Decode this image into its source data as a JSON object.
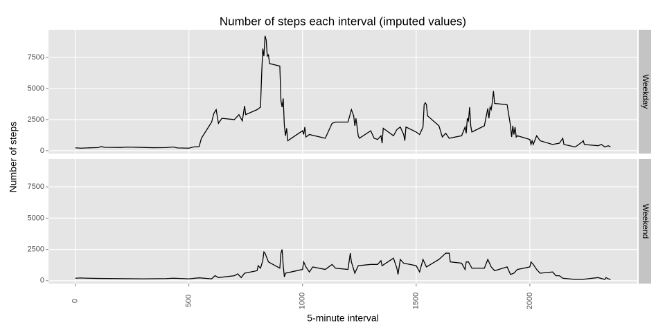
{
  "chart_data": {
    "type": "line",
    "title": "Number of steps each interval (imputed values)",
    "x_label": "5-minute interval",
    "y_label": "Number of steps",
    "color": "#000000",
    "grid": true,
    "xlim": [
      -117.75,
      2472.75
    ],
    "xticks": [
      0,
      500,
      1000,
      1500,
      2000
    ],
    "ylim": [
      -230,
      9720
    ],
    "yticks": [
      0,
      2500,
      5000,
      7500
    ],
    "panels": [
      {
        "label": "Weekday",
        "x": [
          0,
          25,
          50,
          100,
          115,
          130,
          200,
          230,
          300,
          345,
          400,
          430,
          450,
          500,
          520,
          545,
          555,
          600,
          610,
          620,
          630,
          645,
          700,
          720,
          735,
          745,
          750,
          800,
          815,
          820,
          825,
          830,
          835,
          840,
          845,
          850,
          855,
          900,
          905,
          910,
          915,
          920,
          925,
          930,
          935,
          1000,
          1005,
          1010,
          1015,
          1030,
          1100,
          1130,
          1145,
          1200,
          1215,
          1225,
          1230,
          1235,
          1245,
          1250,
          1300,
          1315,
          1330,
          1345,
          1350,
          1355,
          1400,
          1415,
          1430,
          1445,
          1450,
          1455,
          1500,
          1515,
          1530,
          1535,
          1540,
          1545,
          1550,
          1600,
          1615,
          1630,
          1645,
          1700,
          1715,
          1720,
          1725,
          1730,
          1735,
          1740,
          1745,
          1800,
          1815,
          1820,
          1825,
          1830,
          1835,
          1840,
          1845,
          1900,
          1915,
          1920,
          1925,
          1930,
          1935,
          1940,
          1945,
          2000,
          2005,
          2010,
          2015,
          2030,
          2045,
          2100,
          2130,
          2145,
          2150,
          2200,
          2215,
          2230,
          2235,
          2240,
          2300,
          2315,
          2330,
          2345,
          2355
        ],
        "values": [
          230,
          200,
          220,
          250,
          330,
          270,
          260,
          290,
          260,
          240,
          250,
          300,
          220,
          200,
          300,
          330,
          1000,
          2300,
          3000,
          3300,
          2200,
          2600,
          2500,
          2900,
          2400,
          3600,
          2900,
          3300,
          3500,
          6100,
          8200,
          7600,
          9232,
          8900,
          7600,
          7700,
          7000,
          6800,
          4000,
          3500,
          4200,
          2000,
          1200,
          1800,
          800,
          1600,
          1300,
          1900,
          1100,
          1300,
          1000,
          2200,
          2300,
          2300,
          3300,
          2800,
          2000,
          2600,
          1200,
          1000,
          1600,
          1000,
          900,
          1200,
          600,
          1800,
          1200,
          1700,
          1900,
          1300,
          800,
          1900,
          1500,
          1300,
          1900,
          3700,
          3850,
          3700,
          2800,
          2000,
          1100,
          1400,
          1000,
          1200,
          1900,
          1400,
          2600,
          2400,
          3500,
          2000,
          1500,
          2000,
          3400,
          2600,
          3500,
          3300,
          3900,
          4800,
          3800,
          3700,
          2000,
          1100,
          2000,
          1300,
          1900,
          1100,
          1200,
          900,
          500,
          800,
          500,
          1200,
          800,
          500,
          600,
          1000,
          500,
          300,
          500,
          700,
          800,
          500,
          400,
          500,
          300,
          400,
          300
        ]
      },
      {
        "label": "Weekend",
        "x": [
          0,
          25,
          50,
          100,
          300,
          400,
          430,
          500,
          545,
          600,
          615,
          630,
          700,
          715,
          730,
          745,
          800,
          805,
          815,
          825,
          830,
          835,
          850,
          900,
          905,
          910,
          915,
          920,
          925,
          1000,
          1005,
          1015,
          1030,
          1045,
          1100,
          1115,
          1130,
          1145,
          1200,
          1210,
          1215,
          1230,
          1245,
          1300,
          1330,
          1345,
          1350,
          1400,
          1415,
          1420,
          1430,
          1445,
          1500,
          1515,
          1530,
          1545,
          1600,
          1630,
          1645,
          1650,
          1700,
          1715,
          1720,
          1730,
          1745,
          1800,
          1815,
          1830,
          1845,
          1900,
          1915,
          1930,
          1945,
          2000,
          2005,
          2015,
          2030,
          2045,
          2100,
          2115,
          2130,
          2145,
          2200,
          2230,
          2300,
          2330,
          2335,
          2345,
          2355
        ],
        "values": [
          200,
          220,
          200,
          180,
          150,
          170,
          200,
          150,
          230,
          150,
          400,
          250,
          400,
          550,
          250,
          600,
          800,
          1200,
          1000,
          1600,
          2300,
          2200,
          1500,
          1000,
          2200,
          2500,
          1200,
          300,
          600,
          900,
          1500,
          1100,
          700,
          1100,
          900,
          1100,
          1300,
          1000,
          900,
          2200,
          1500,
          600,
          1200,
          1300,
          1300,
          1600,
          1200,
          1800,
          1000,
          500,
          1700,
          1400,
          1200,
          700,
          1700,
          1100,
          1700,
          2200,
          2200,
          1500,
          1400,
          900,
          1500,
          1500,
          1000,
          1000,
          1700,
          1100,
          800,
          1100,
          500,
          600,
          900,
          1100,
          1500,
          1300,
          900,
          600,
          700,
          400,
          400,
          200,
          100,
          100,
          250,
          100,
          250,
          150,
          100
        ]
      }
    ]
  }
}
